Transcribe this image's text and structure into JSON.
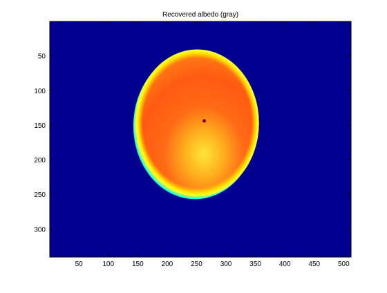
{
  "chart_data": {
    "type": "heatmap",
    "title": "Recovered albedo (gray)",
    "xlabel": "",
    "ylabel": "",
    "xlim": [
      1,
      512
    ],
    "ylim": [
      340,
      1
    ],
    "y_axis_direction": "reversed",
    "x_ticks": [
      50,
      100,
      150,
      200,
      250,
      300,
      350,
      400,
      450,
      500
    ],
    "y_ticks": [
      50,
      100,
      150,
      200,
      250,
      300
    ],
    "grid": false,
    "colormap": "jet",
    "background_color": "#00008f",
    "ellipse": {
      "center_x": 251,
      "center_y": 147,
      "radius_x": 105,
      "radius_y": 106
    },
    "colors": {
      "dark_blue": "#00008f",
      "cyan": "#00ffff",
      "green": "#80ff80",
      "yellow": "#ffee00",
      "orange": "#ff8800",
      "red_orange": "#ff5500",
      "dark_spot": "#800000"
    }
  }
}
